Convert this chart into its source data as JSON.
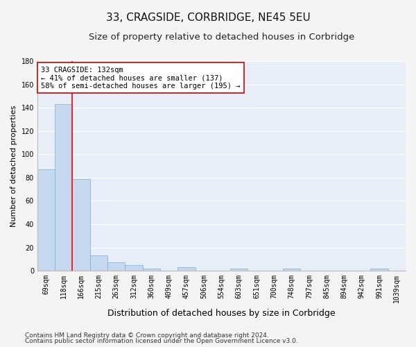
{
  "title": "33, CRAGSIDE, CORBRIDGE, NE45 5EU",
  "subtitle": "Size of property relative to detached houses in Corbridge",
  "xlabel": "Distribution of detached houses by size in Corbridge",
  "ylabel": "Number of detached properties",
  "bar_color": "#c5d8ee",
  "bar_edge_color": "#7aadd4",
  "background_color": "#e8eef8",
  "fig_background_color": "#f4f4f4",
  "grid_color": "#ffffff",
  "categories": [
    "69sqm",
    "118sqm",
    "166sqm",
    "215sqm",
    "263sqm",
    "312sqm",
    "360sqm",
    "409sqm",
    "457sqm",
    "506sqm",
    "554sqm",
    "603sqm",
    "651sqm",
    "700sqm",
    "748sqm",
    "797sqm",
    "845sqm",
    "894sqm",
    "942sqm",
    "991sqm",
    "1039sqm"
  ],
  "values": [
    87,
    143,
    79,
    13,
    7,
    5,
    2,
    0,
    3,
    0,
    0,
    2,
    0,
    0,
    2,
    0,
    0,
    0,
    0,
    2,
    0
  ],
  "ylim": [
    0,
    180
  ],
  "yticks": [
    0,
    20,
    40,
    60,
    80,
    100,
    120,
    140,
    160,
    180
  ],
  "redline_x": 1.5,
  "annotation_line1": "33 CRAGSIDE: 132sqm",
  "annotation_line2": "← 41% of detached houses are smaller (137)",
  "annotation_line3": "58% of semi-detached houses are larger (195) →",
  "annotation_box_color": "#ffffff",
  "annotation_box_edge_color": "#cc0000",
  "footer_line1": "Contains HM Land Registry data © Crown copyright and database right 2024.",
  "footer_line2": "Contains public sector information licensed under the Open Government Licence v3.0.",
  "title_fontsize": 11,
  "subtitle_fontsize": 9.5,
  "xlabel_fontsize": 9,
  "ylabel_fontsize": 8,
  "tick_fontsize": 7,
  "annotation_fontsize": 7.5,
  "footer_fontsize": 6.5
}
